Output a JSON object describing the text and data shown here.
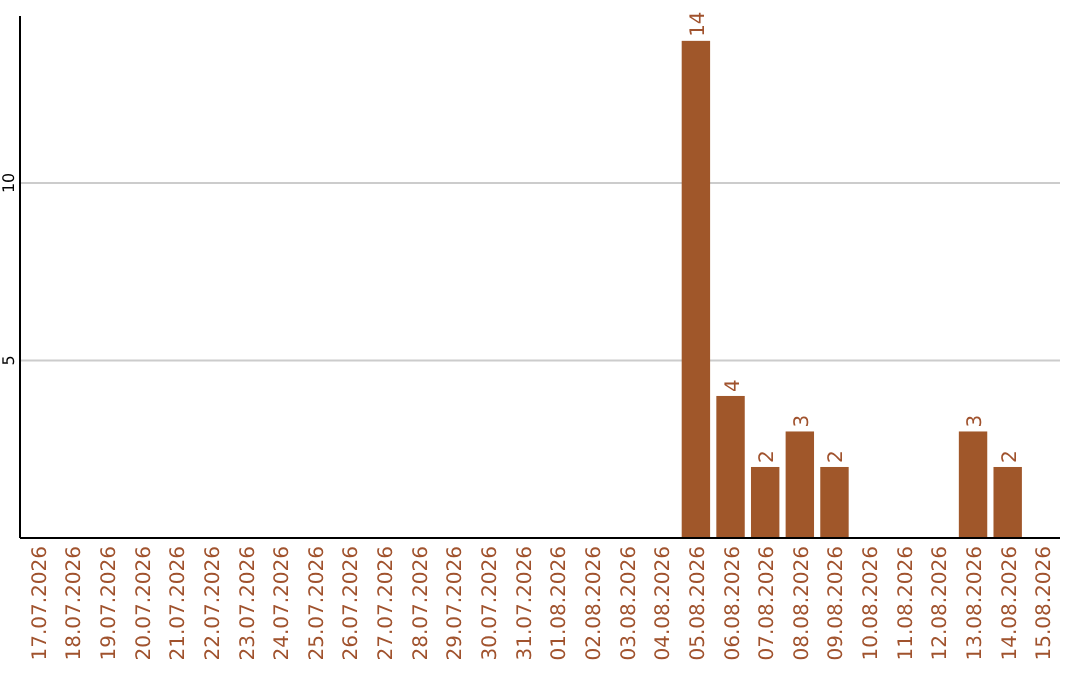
{
  "chart_data": {
    "type": "bar",
    "categories": [
      "17.07.2026",
      "18.07.2026",
      "19.07.2026",
      "20.07.2026",
      "21.07.2026",
      "22.07.2026",
      "23.07.2026",
      "24.07.2026",
      "25.07.2026",
      "26.07.2026",
      "27.07.2026",
      "28.07.2026",
      "29.07.2026",
      "30.07.2026",
      "31.07.2026",
      "01.08.2026",
      "02.08.2026",
      "03.08.2026",
      "04.08.2026",
      "05.08.2026",
      "06.08.2026",
      "07.08.2026",
      "08.08.2026",
      "09.08.2026",
      "10.08.2026",
      "11.08.2026",
      "12.08.2026",
      "13.08.2026",
      "14.08.2026",
      "15.08.2026"
    ],
    "values": [
      0,
      0,
      0,
      0,
      0,
      0,
      0,
      0,
      0,
      0,
      0,
      0,
      0,
      0,
      0,
      0,
      0,
      0,
      0,
      14,
      4,
      2,
      3,
      2,
      0,
      0,
      0,
      3,
      2,
      0
    ],
    "value_labels": [
      null,
      null,
      null,
      null,
      null,
      null,
      null,
      null,
      null,
      null,
      null,
      null,
      null,
      null,
      null,
      null,
      null,
      null,
      null,
      "14",
      "4",
      "2",
      "3",
      "2",
      null,
      null,
      null,
      "3",
      "2",
      null
    ],
    "color": "#a0572a",
    "ylim": [
      0,
      14.7
    ],
    "yticks": [
      5,
      10
    ],
    "grid": "y"
  }
}
